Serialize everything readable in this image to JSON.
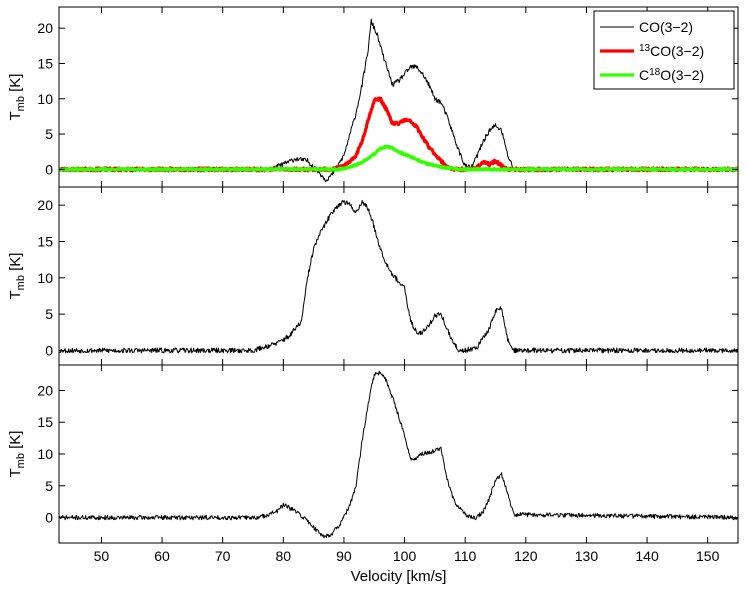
{
  "chart_data": [
    {
      "type": "line",
      "panel": "top",
      "xlim": [
        43,
        155
      ],
      "ylim": [
        -2.5,
        23
      ],
      "yticks": [
        0,
        5,
        10,
        15,
        20
      ],
      "ylabel": {
        "base": "T",
        "sub": "mb",
        "unit": " [K]"
      },
      "legend": {
        "placement": "top-right",
        "entries": [
          {
            "parts": [
              {
                "t": "CO(3−2)"
              }
            ],
            "series": "CO(3-2)"
          },
          {
            "parts": [
              {
                "t": "13",
                "sup": true
              },
              {
                "t": "CO(3−2)"
              }
            ],
            "series": "13CO(3-2)"
          },
          {
            "parts": [
              {
                "t": "C"
              },
              {
                "t": "18",
                "sup": true
              },
              {
                "t": "O(3−2)"
              }
            ],
            "series": "C18O(3-2)"
          }
        ]
      },
      "series": [
        {
          "name": "CO(3-2)",
          "color": "#000000",
          "width": 1,
          "noise": 0.35,
          "seed": 11,
          "x": [
            43,
            78,
            82,
            84,
            86,
            87,
            88,
            89,
            90,
            91,
            92,
            93,
            94,
            94.5,
            95.5,
            96.5,
            98,
            99,
            100,
            101,
            102,
            103,
            104,
            105,
            106,
            107,
            108,
            109,
            110,
            111,
            112,
            113,
            114,
            115,
            116,
            117,
            118,
            155
          ],
          "y": [
            0,
            0,
            1.5,
            1.2,
            -0.5,
            -1.5,
            -0.8,
            0.5,
            2.0,
            5.0,
            8.0,
            12.0,
            17.0,
            21.0,
            19.0,
            16.0,
            12.0,
            12.5,
            13.5,
            14.5,
            14.5,
            13.5,
            12.0,
            10.0,
            9.5,
            7.5,
            5.0,
            2.5,
            0.5,
            0.2,
            2.0,
            4.0,
            5.5,
            6.2,
            5.5,
            2.0,
            0,
            0
          ]
        },
        {
          "name": "13CO(3-2)",
          "color": "#ff0000",
          "width": 3.2,
          "noise": 0.2,
          "seed": 23,
          "x": [
            43,
            88,
            89,
            90,
            91,
            92,
            93,
            94,
            95,
            96,
            97,
            98,
            99,
            100,
            101,
            102,
            103,
            104,
            105,
            106,
            107,
            108,
            109,
            110,
            111,
            112,
            113,
            114,
            115,
            116,
            117,
            155
          ],
          "y": [
            0,
            0,
            0.2,
            0.5,
            1.0,
            2.0,
            4.0,
            7.0,
            9.8,
            10.0,
            8.5,
            6.5,
            6.5,
            7.0,
            6.8,
            6.0,
            4.5,
            3.2,
            2.2,
            1.2,
            0.4,
            0,
            0,
            0,
            0,
            0.4,
            1.0,
            0.7,
            1.2,
            0.5,
            0,
            0
          ]
        },
        {
          "name": "C18O(3-2)",
          "color": "#33ff00",
          "width": 3.2,
          "noise": 0.12,
          "seed": 37,
          "x": [
            43,
            89,
            91,
            93,
            95,
            96,
            97,
            98,
            99,
            101,
            103,
            105,
            107,
            109,
            155
          ],
          "y": [
            0,
            0,
            0.3,
            1.0,
            2.2,
            3.0,
            3.2,
            3.0,
            2.5,
            1.8,
            1.0,
            0.5,
            0.2,
            0,
            0
          ]
        }
      ]
    },
    {
      "type": "line",
      "panel": "middle",
      "xlim": [
        43,
        155
      ],
      "ylim": [
        -2,
        22.5
      ],
      "yticks": [
        0,
        5,
        10,
        15,
        20
      ],
      "ylabel": {
        "base": "T",
        "sub": "mb",
        "unit": " [K]"
      },
      "series": [
        {
          "name": "",
          "color": "#000000",
          "width": 1,
          "noise": 0.35,
          "seed": 53,
          "x": [
            43,
            75,
            79,
            81,
            82,
            83,
            84,
            85,
            86,
            87,
            88,
            89,
            90,
            91,
            92,
            93,
            94,
            95,
            96,
            97,
            98,
            99,
            100,
            101,
            102,
            103,
            104,
            105,
            106,
            107,
            108,
            109,
            110,
            112,
            114,
            115,
            116,
            117,
            118,
            155
          ],
          "y": [
            0,
            0,
            1.0,
            2.0,
            3.0,
            4.0,
            10.0,
            14.0,
            16.0,
            17.5,
            19.0,
            20.0,
            20.5,
            20.0,
            19.0,
            20.5,
            19.5,
            17.0,
            14.0,
            12.0,
            10.5,
            9.5,
            8.5,
            4.0,
            2.5,
            2.5,
            3.5,
            4.8,
            5.0,
            3.0,
            1.0,
            0,
            0,
            0.5,
            3.0,
            5.5,
            5.8,
            1.5,
            0,
            0
          ]
        }
      ]
    },
    {
      "type": "line",
      "panel": "bottom",
      "xlim": [
        43,
        155
      ],
      "ylim": [
        -4,
        24
      ],
      "yticks": [
        0,
        5,
        10,
        15,
        20
      ],
      "ylabel": {
        "base": "T",
        "sub": "mb",
        "unit": " [K]"
      },
      "xlabel": "Velocity [km/s]",
      "xticks": [
        50,
        60,
        70,
        80,
        90,
        100,
        110,
        120,
        130,
        140,
        150
      ],
      "series": [
        {
          "name": "",
          "color": "#000000",
          "width": 1,
          "noise": 0.35,
          "seed": 71,
          "x": [
            43,
            76,
            79,
            80,
            82,
            84,
            85,
            86,
            87,
            88,
            89,
            90,
            91,
            92,
            93,
            94,
            95,
            96,
            97,
            98,
            99,
            100,
            101,
            103,
            105,
            106,
            107,
            108,
            109,
            110,
            111,
            112,
            113,
            114,
            115,
            116,
            117,
            118,
            155
          ],
          "y": [
            0,
            0,
            1.0,
            2.0,
            1.0,
            -0.5,
            -1.5,
            -2.5,
            -3.0,
            -2.5,
            -1.5,
            0,
            2.0,
            5.0,
            12.0,
            18.0,
            22.5,
            22.8,
            21.5,
            19.0,
            16.0,
            13.0,
            9.0,
            10.0,
            10.5,
            11.0,
            6.0,
            3.0,
            1.5,
            0.5,
            0,
            0,
            1.0,
            3.0,
            6.0,
            6.8,
            4.0,
            0.5,
            0
          ]
        }
      ]
    }
  ]
}
